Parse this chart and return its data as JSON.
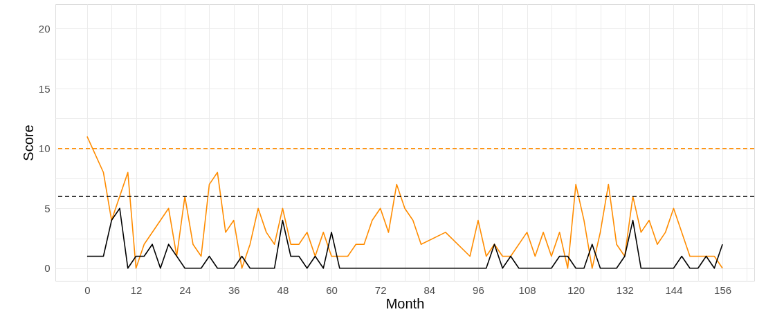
{
  "chart_data": {
    "type": "line",
    "xlabel": "Month",
    "ylabel": "Score",
    "xlim": [
      -7.8,
      163.8
    ],
    "ylim": [
      -1.05,
      22.05
    ],
    "xticks": [
      0,
      {
        "value": 6,
        "label": null
      },
      12,
      {
        "value": 18,
        "label": null
      },
      24,
      {
        "value": 30,
        "label": null
      },
      36,
      {
        "value": 42,
        "label": null
      },
      48,
      {
        "value": 54,
        "label": null
      },
      60,
      {
        "value": 66,
        "label": null
      },
      72,
      {
        "value": 78,
        "label": null
      },
      84,
      {
        "value": 90,
        "label": null
      },
      96,
      {
        "value": 102,
        "label": null
      },
      108,
      {
        "value": 114,
        "label": null
      },
      120,
      {
        "value": 126,
        "label": null
      },
      132,
      {
        "value": 138,
        "label": null
      },
      144,
      {
        "value": 150,
        "label": null
      },
      156,
      {
        "value": 162,
        "label": null
      }
    ],
    "yticks": [
      0,
      {
        "value": 2.5,
        "label": null
      },
      5,
      {
        "value": 7.5,
        "label": null
      },
      10,
      {
        "value": 12.5,
        "label": null
      },
      15,
      {
        "value": 17.5,
        "label": null
      },
      20
    ],
    "grid": true,
    "line_style": "solid",
    "marker": "none",
    "series": [
      {
        "color": "#ff8c00",
        "x": [
          0,
          4,
          6,
          10,
          12,
          14,
          20,
          22,
          24,
          26,
          28,
          30,
          32,
          34,
          36,
          38,
          40,
          42,
          44,
          46,
          48,
          50,
          52,
          54,
          56,
          58,
          60,
          64,
          66,
          68,
          70,
          72,
          74,
          76,
          78,
          80,
          82,
          88,
          94,
          96,
          98,
          100,
          102,
          104,
          108,
          110,
          112,
          114,
          116,
          118,
          120,
          122,
          124,
          126,
          128,
          130,
          132,
          134,
          136,
          138,
          140,
          142,
          144,
          148,
          150,
          152,
          154,
          156
        ],
        "values": [
          11,
          8,
          4,
          8,
          0,
          2,
          5,
          1,
          6,
          2,
          1,
          7,
          8,
          3,
          4,
          0,
          2,
          5,
          3,
          2,
          5,
          2,
          2,
          3,
          1,
          3,
          1,
          1,
          2,
          2,
          4,
          5,
          3,
          7,
          5,
          4,
          2,
          3,
          1,
          4,
          1,
          2,
          1,
          1,
          3,
          1,
          3,
          1,
          3,
          0,
          7,
          4,
          0,
          3,
          7,
          2,
          1,
          6,
          3,
          4,
          2,
          3,
          5,
          1,
          1,
          1,
          1,
          0
        ]
      },
      {
        "color": "#000000",
        "x": [
          0,
          4,
          6,
          8,
          10,
          12,
          14,
          16,
          18,
          20,
          24,
          28,
          30,
          32,
          36,
          38,
          40,
          46,
          48,
          50,
          52,
          54,
          56,
          58,
          60,
          62,
          98,
          100,
          102,
          104,
          106,
          114,
          116,
          118,
          120,
          122,
          124,
          126,
          130,
          132,
          134,
          136,
          144,
          146,
          148,
          150,
          152,
          154,
          156
        ],
        "values": [
          1,
          1,
          4,
          5,
          0,
          1,
          1,
          2,
          0,
          2,
          0,
          0,
          1,
          0,
          0,
          1,
          0,
          0,
          4,
          1,
          1,
          0,
          1,
          0,
          3,
          0,
          0,
          2,
          0,
          1,
          0,
          0,
          1,
          1,
          0,
          0,
          2,
          0,
          0,
          1,
          4,
          0,
          0,
          1,
          0,
          0,
          1,
          0,
          2
        ]
      }
    ],
    "ref_lines": [
      {
        "axis": "y",
        "value": 10,
        "color": "#ff8c00",
        "line_style": "dashed"
      },
      {
        "axis": "y",
        "value": 6,
        "color": "#000000",
        "line_style": "dashed"
      }
    ]
  }
}
